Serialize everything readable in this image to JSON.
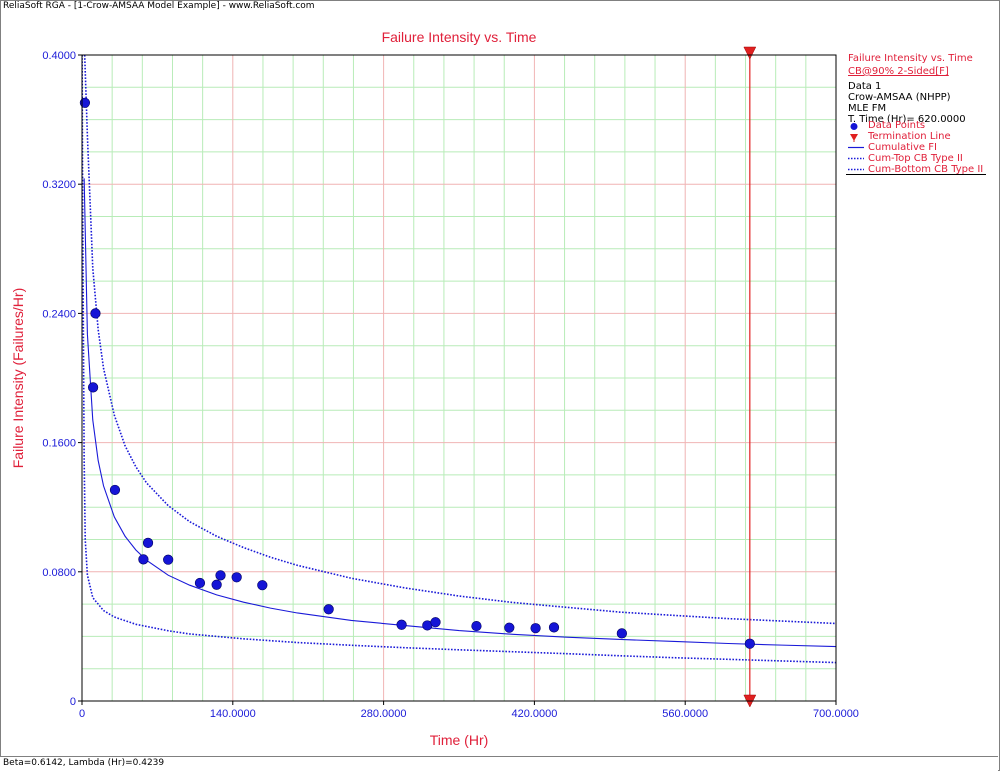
{
  "window": {
    "title": "ReliaSoft RGA - [1-Crow-AMSAA Model Example] - www.ReliaSoft.com"
  },
  "status_bar": {
    "text": "Beta=0.6142, Lambda (Hr)=0.4239"
  },
  "colors": {
    "title_red": "#e0203a",
    "axis_blue": "#1a1ad8",
    "grid_major": "#f0b4b4",
    "grid_minor": "#b8ecb8",
    "point_blue": "#1515d6",
    "termination_red": "#e02020"
  },
  "legend": {
    "header": "Failure Intensity vs. Time",
    "confidence": "CB@90% 2-Sided[F]",
    "data_name": "Data 1",
    "model": "Crow-AMSAA (NHPP)",
    "method": "MLE FM",
    "termination_time": "T. Time (Hr)= 620.0000",
    "items": [
      {
        "label": "Data Points",
        "symbol": "dot",
        "color": "#1515d6"
      },
      {
        "label": "Termination Line",
        "symbol": "triangle",
        "color": "#e02020"
      },
      {
        "label": "Cumulative FI",
        "symbol": "solid",
        "color": "#1a1ad8"
      },
      {
        "label": "Cum-Top CB Type II",
        "symbol": "dotted",
        "color": "#1a1ad8"
      },
      {
        "label": "Cum-Bottom CB Type II",
        "symbol": "dotted",
        "color": "#1a1ad8"
      }
    ]
  },
  "chart_data": {
    "type": "scatter",
    "title": "Failure Intensity vs. Time",
    "xlabel": "Time (Hr)",
    "ylabel": "Failure Intensity (Failures/Hr)",
    "xlim": [
      0,
      700
    ],
    "ylim": [
      0,
      0.4
    ],
    "x_ticks": [
      0,
      140,
      280,
      420,
      560,
      700
    ],
    "x_tick_labels": [
      "0",
      "140.0000",
      "280.0000",
      "420.0000",
      "560.0000",
      "700.0000"
    ],
    "y_ticks": [
      0,
      0.08,
      0.16,
      0.24,
      0.32,
      0.4
    ],
    "y_tick_labels": [
      "0",
      "0.0800",
      "0.1600",
      "0.2400",
      "0.3200",
      "0.4000"
    ],
    "grid": true,
    "legend_position": "right",
    "parameters": {
      "beta": 0.6142,
      "lambda": 0.4239
    },
    "termination_time": 620,
    "series": [
      {
        "name": "Data Points",
        "type": "scatter",
        "points": [
          [
            2.7,
            0.3704
          ],
          [
            10.3,
            0.1942
          ],
          [
            12.5,
            0.24
          ],
          [
            30.6,
            0.1307
          ],
          [
            57.0,
            0.0877
          ],
          [
            61.3,
            0.0979
          ],
          [
            80.0,
            0.0875
          ],
          [
            109.5,
            0.0731
          ],
          [
            125.0,
            0.072
          ],
          [
            128.6,
            0.0778
          ],
          [
            143.6,
            0.0766
          ],
          [
            167.4,
            0.0717
          ],
          [
            229.0,
            0.0568
          ],
          [
            296.7,
            0.0472
          ],
          [
            320.6,
            0.0468
          ],
          [
            328.2,
            0.0488
          ],
          [
            366.2,
            0.0464
          ],
          [
            396.7,
            0.0454
          ],
          [
            421.1,
            0.0451
          ],
          [
            438.2,
            0.0456
          ],
          [
            501.2,
            0.0419
          ],
          [
            620.0,
            0.0355
          ]
        ]
      },
      {
        "name": "Cumulative FI",
        "type": "line",
        "points": [
          [
            2,
            0.3236
          ],
          [
            5,
            0.2272
          ],
          [
            10,
            0.174
          ],
          [
            15,
            0.1489
          ],
          [
            20,
            0.1332
          ],
          [
            30,
            0.114
          ],
          [
            40,
            0.102
          ],
          [
            50,
            0.0935
          ],
          [
            60,
            0.0871
          ],
          [
            80,
            0.0779
          ],
          [
            100,
            0.0717
          ],
          [
            125,
            0.0657
          ],
          [
            150,
            0.0612
          ],
          [
            175,
            0.0575
          ],
          [
            200,
            0.0545
          ],
          [
            250,
            0.0499
          ],
          [
            300,
            0.0467
          ],
          [
            350,
            0.0436
          ],
          [
            400,
            0.0413
          ],
          [
            450,
            0.0395
          ],
          [
            500,
            0.0381
          ],
          [
            550,
            0.0369
          ],
          [
            600,
            0.0356
          ],
          [
            650,
            0.0346
          ],
          [
            700,
            0.0337
          ]
        ]
      },
      {
        "name": "Cum-Top CB Type II",
        "type": "line",
        "points": [
          [
            2.5,
            0.4
          ],
          [
            5,
            0.35
          ],
          [
            10,
            0.268
          ],
          [
            15,
            0.23
          ],
          [
            20,
            0.206
          ],
          [
            30,
            0.177
          ],
          [
            40,
            0.158
          ],
          [
            50,
            0.145
          ],
          [
            60,
            0.135
          ],
          [
            80,
            0.121
          ],
          [
            100,
            0.111
          ],
          [
            125,
            0.102
          ],
          [
            150,
            0.095
          ],
          [
            175,
            0.089
          ],
          [
            200,
            0.084
          ],
          [
            250,
            0.076
          ],
          [
            300,
            0.07
          ],
          [
            350,
            0.065
          ],
          [
            400,
            0.061
          ],
          [
            450,
            0.058
          ],
          [
            500,
            0.055
          ],
          [
            550,
            0.053
          ],
          [
            600,
            0.051
          ],
          [
            650,
            0.0495
          ],
          [
            700,
            0.048
          ]
        ]
      },
      {
        "name": "Cum-Bottom CB Type II",
        "type": "line",
        "points": [
          [
            0.1,
            0.4
          ],
          [
            0.5,
            0.33
          ],
          [
            1,
            0.26
          ],
          [
            2,
            0.15
          ],
          [
            3,
            0.1
          ],
          [
            5,
            0.078
          ],
          [
            10,
            0.064
          ],
          [
            20,
            0.056
          ],
          [
            30,
            0.052
          ],
          [
            50,
            0.0475
          ],
          [
            80,
            0.0435
          ],
          [
            100,
            0.0415
          ],
          [
            150,
            0.0385
          ],
          [
            200,
            0.0362
          ],
          [
            250,
            0.0345
          ],
          [
            300,
            0.033
          ],
          [
            350,
            0.0317
          ],
          [
            400,
            0.0305
          ],
          [
            450,
            0.0293
          ],
          [
            500,
            0.028
          ],
          [
            550,
            0.0268
          ],
          [
            600,
            0.0258
          ],
          [
            650,
            0.0248
          ],
          [
            700,
            0.0238
          ]
        ]
      }
    ]
  }
}
